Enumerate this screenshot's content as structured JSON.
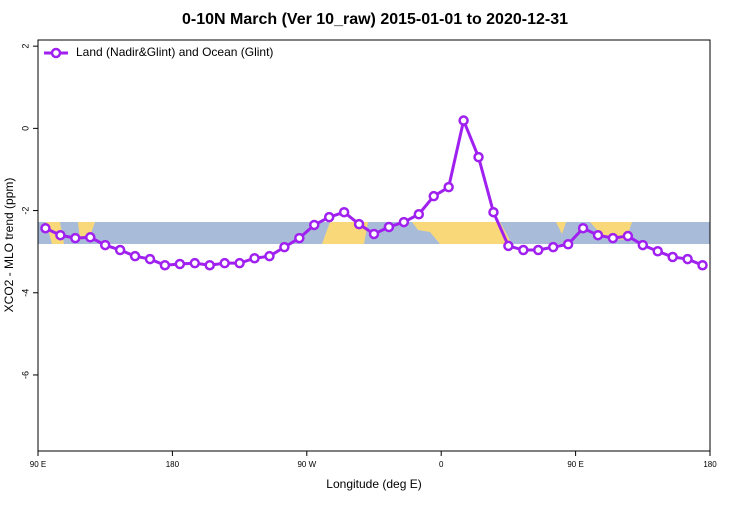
{
  "chart_data": {
    "type": "line",
    "title": "0-10N March (Ver 10_raw)   2015-01-01 to 2020-12-31",
    "x_label": "Longitude (deg E)",
    "y_label": "XCO2 - MLO trend (ppm)",
    "x": [
      95,
      105,
      115,
      125,
      135,
      145,
      155,
      165,
      175,
      185,
      195,
      205,
      215,
      225,
      235,
      245,
      255,
      265,
      275,
      285,
      295,
      305,
      315,
      325,
      335,
      345,
      355,
      365,
      375,
      385,
      395,
      405,
      415,
      425,
      435,
      445,
      455,
      465,
      475,
      485,
      495,
      505,
      515,
      525,
      535
    ],
    "series": [
      {
        "name": "Land (Nadir&Glint) and Ocean (Glint)",
        "color": "#a020f0",
        "values": [
          -2.43,
          -2.6,
          -2.67,
          -2.65,
          -2.84,
          -2.96,
          -3.11,
          -3.18,
          -3.33,
          -3.3,
          -3.28,
          -3.33,
          -3.28,
          -3.28,
          -3.16,
          -3.11,
          -2.89,
          -2.67,
          -2.35,
          -2.16,
          -2.04,
          -2.33,
          -2.57,
          -2.4,
          -2.28,
          -2.09,
          -1.65,
          -1.43,
          0.19,
          -0.7,
          -2.04,
          -2.86,
          -2.96,
          -2.96,
          -2.89,
          -2.82,
          -2.43,
          -2.6,
          -2.67,
          -2.62,
          -2.84,
          -2.99,
          -3.13,
          -3.18,
          -3.33
        ]
      }
    ],
    "xlim": [
      90,
      540
    ],
    "xticks": [
      {
        "value": 90,
        "label": "90 E"
      },
      180,
      {
        "value": 270,
        "label": "90 W"
      },
      {
        "value": 360,
        "label": "0"
      },
      {
        "value": 450,
        "label": "90 E"
      },
      {
        "value": 540,
        "label": "180"
      }
    ],
    "ylim": [
      -7.85,
      2.15
    ],
    "yticks": [
      -6,
      -4,
      -2,
      0,
      2
    ],
    "legend": "top-left"
  }
}
